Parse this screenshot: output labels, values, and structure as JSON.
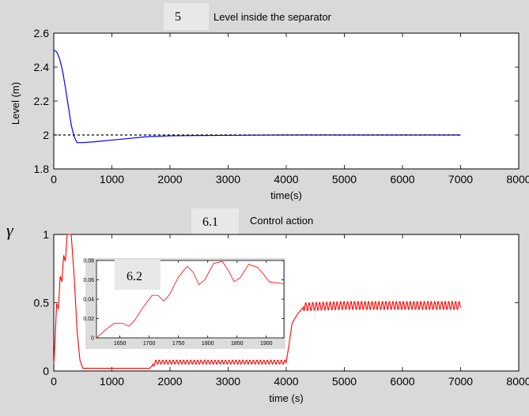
{
  "chart_data": [
    {
      "type": "line",
      "figure_label": "5",
      "title": "Level inside the separator",
      "xlabel": "time(s)",
      "ylabel": "Level (m)",
      "xlim": [
        0,
        8000
      ],
      "ylim": [
        1.8,
        2.6
      ],
      "xticks": [
        "0",
        "1000",
        "2000",
        "3000",
        "4000",
        "5000",
        "6000",
        "7000",
        "8000"
      ],
      "yticks": [
        "1.8",
        "2",
        "2.2",
        "2.4",
        "2.6"
      ],
      "series": [
        {
          "style": "solid",
          "color": "#0000ff",
          "x": [
            0,
            50,
            100,
            150,
            200,
            250,
            300,
            350,
            400,
            500,
            700,
            1000,
            1300,
            1600,
            2000,
            2500,
            3000,
            3500,
            4000,
            4200,
            5000,
            6000,
            7000
          ],
          "y": [
            2.5,
            2.49,
            2.45,
            2.38,
            2.28,
            2.17,
            2.06,
            1.99,
            1.955,
            1.955,
            1.96,
            1.97,
            1.98,
            1.99,
            1.995,
            1.997,
            1.998,
            1.999,
            2.0,
            2.0,
            2.0,
            2.0,
            2.0
          ]
        },
        {
          "style": "dashed",
          "color": "#000000",
          "x": [
            0,
            7000
          ],
          "y": [
            2.0,
            2.0
          ]
        }
      ]
    },
    {
      "type": "line",
      "figure_label": "6.1",
      "title": "Control action",
      "xlabel": "time (s)",
      "ylabel": "γ",
      "xlim": [
        0,
        8000
      ],
      "ylim": [
        0,
        1
      ],
      "xticks": [
        "0",
        "1000",
        "2000",
        "3000",
        "4000",
        "5000",
        "6000",
        "7000",
        "8000"
      ],
      "yticks": [
        "0",
        "0.5",
        "1"
      ],
      "series": [
        {
          "color": "#ff0000",
          "x": [
            0,
            20,
            50,
            80,
            110,
            140,
            170,
            200,
            230,
            260,
            300,
            350,
            400,
            450,
            500,
            600,
            800,
            1200,
            1650,
            1700,
            1750,
            4000,
            4050,
            4100,
            4200,
            4300,
            5000,
            6000,
            7000
          ],
          "y": [
            0.05,
            0.2,
            0.5,
            0.45,
            0.7,
            0.65,
            0.85,
            0.8,
            1.0,
            1.0,
            1.0,
            0.7,
            0.3,
            0.08,
            0.02,
            0.02,
            0.02,
            0.02,
            0.02,
            0.04,
            0.065,
            0.065,
            0.2,
            0.35,
            0.42,
            0.47,
            0.48,
            0.48,
            0.48
          ],
          "oscillation": [
            {
              "from": 1700,
              "to": 4000,
              "amplitude": 0.015,
              "period": 60
            },
            {
              "from": 4300,
              "to": 7000,
              "amplitude": 0.03,
              "period": 60
            }
          ]
        }
      ],
      "inset": {
        "figure_label": "6.2",
        "xlim": [
          1610,
          1930
        ],
        "ylim": [
          0,
          0.08
        ],
        "xticks": [
          "1650",
          "1700",
          "1750",
          "1800",
          "1850",
          "1900"
        ],
        "yticks": [
          "0",
          "0.02",
          "0.04",
          "0.06",
          "0.08"
        ],
        "series": [
          {
            "color": "#ff0000",
            "x": [
              1610,
              1625,
              1640,
              1655,
              1665,
              1675,
              1690,
              1705,
              1715,
              1725,
              1735,
              1750,
              1765,
              1775,
              1785,
              1795,
              1810,
              1825,
              1835,
              1845,
              1855,
              1870,
              1885,
              1895,
              1905,
              1915,
              1930
            ],
            "y": [
              0.0,
              0.008,
              0.015,
              0.015,
              0.012,
              0.018,
              0.032,
              0.044,
              0.044,
              0.038,
              0.045,
              0.063,
              0.074,
              0.068,
              0.055,
              0.06,
              0.077,
              0.079,
              0.07,
              0.058,
              0.062,
              0.076,
              0.073,
              0.066,
              0.058,
              0.057,
              0.056
            ]
          }
        ]
      }
    }
  ]
}
